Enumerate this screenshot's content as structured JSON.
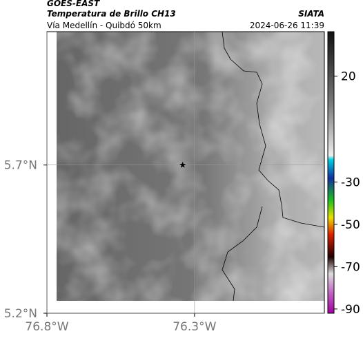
{
  "header": {
    "source": "GOES-EAST",
    "title": "Temperatura de Brillo CH13",
    "org": "SIATA",
    "subtitle": "Vía Medellín - Quibdó 50km",
    "datetime": "2024-06-26 11:39"
  },
  "map": {
    "xlim": [
      -76.8,
      -75.86
    ],
    "ylim": [
      5.2,
      6.15
    ],
    "xticks": [
      {
        "value": -76.8,
        "label": "76.8°W"
      },
      {
        "value": -76.3,
        "label": "76.3°W"
      }
    ],
    "yticks": [
      {
        "value": 5.7,
        "label": "5.7°N"
      },
      {
        "value": 5.2,
        "label": "5.2°N"
      }
    ],
    "marker": {
      "lon": -76.34,
      "lat": 5.7
    }
  },
  "colorbar": {
    "clim": [
      41,
      -92
    ],
    "ticks": [
      20,
      -30,
      -50,
      -70,
      -90
    ]
  }
}
